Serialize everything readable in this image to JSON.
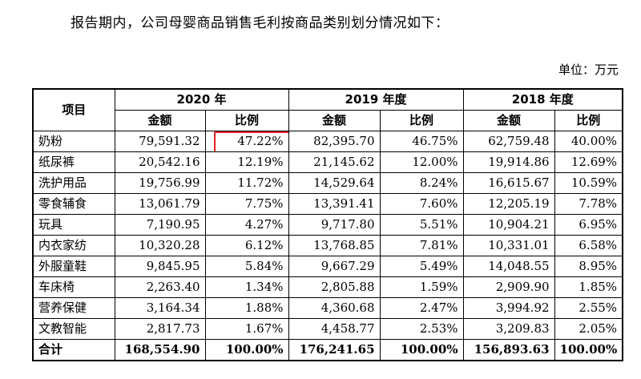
{
  "intro_text": "报告期内，公司母婴商品销售毛利按商品类别划分情况如下：",
  "unit_label": "单位：万元",
  "table": {
    "item_header": "项目",
    "years": [
      "2020 年",
      "2019 年度",
      "2018 年度"
    ],
    "amount_label": "金额",
    "ratio_label": "比例",
    "rows": [
      {
        "name": "奶粉",
        "values": [
          "79,591.32",
          "47.22%",
          "82,395.70",
          "46.75%",
          "62,759.48",
          "40.00%"
        ]
      },
      {
        "name": "纸尿裤",
        "values": [
          "20,542.16",
          "12.19%",
          "21,145.62",
          "12.00%",
          "19,914.86",
          "12.69%"
        ]
      },
      {
        "name": "洗护用品",
        "values": [
          "19,756.99",
          "11.72%",
          "14,529.64",
          "8.24%",
          "16,615.67",
          "10.59%"
        ]
      },
      {
        "name": "零食辅食",
        "values": [
          "13,061.79",
          "7.75%",
          "13,391.41",
          "7.60%",
          "12,205.19",
          "7.78%"
        ]
      },
      {
        "name": "玩具",
        "values": [
          "7,190.95",
          "4.27%",
          "9,717.80",
          "5.51%",
          "10,904.21",
          "6.95%"
        ]
      },
      {
        "name": "内衣家纺",
        "values": [
          "10,320.28",
          "6.12%",
          "13,768.85",
          "7.81%",
          "10,331.01",
          "6.58%"
        ]
      },
      {
        "name": "外服童鞋",
        "values": [
          "9,845.95",
          "5.84%",
          "9,667.29",
          "5.49%",
          "14,048.55",
          "8.95%"
        ]
      },
      {
        "name": "车床椅",
        "values": [
          "2,263.40",
          "1.34%",
          "2,805.88",
          "1.59%",
          "2,909.90",
          "1.85%"
        ]
      },
      {
        "name": "营养保健",
        "values": [
          "3,164.34",
          "1.88%",
          "4,360.68",
          "2.47%",
          "3,994.92",
          "2.55%"
        ]
      },
      {
        "name": "文教智能",
        "values": [
          "2,817.73",
          "1.67%",
          "4,458.77",
          "2.53%",
          "3,209.83",
          "2.05%"
        ]
      }
    ],
    "total": {
      "name": "合计",
      "values": [
        "168,554.90",
        "100.00%",
        "176,241.65",
        "100.00%",
        "156,893.63",
        "100.00%"
      ]
    }
  },
  "highlight_color": "#e02020"
}
